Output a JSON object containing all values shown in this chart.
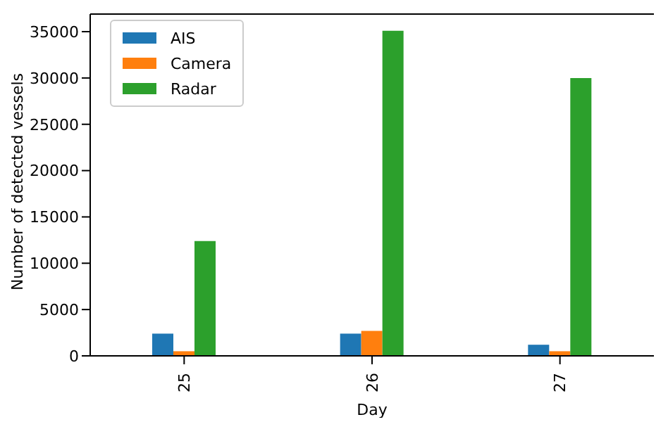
{
  "chart_data": {
    "type": "bar",
    "categories": [
      "25",
      "26",
      "27"
    ],
    "xlabel": "Day",
    "ylabel": "Number of detected vessels",
    "series": [
      {
        "name": "AIS",
        "color": "#1f77b4",
        "values": [
          2400,
          2400,
          1200
        ]
      },
      {
        "name": "Camera",
        "color": "#ff7f0e",
        "values": [
          500,
          2700,
          500
        ]
      },
      {
        "name": "Radar",
        "color": "#2ca02c",
        "values": [
          12400,
          35100,
          30000
        ]
      }
    ],
    "ylim": [
      0,
      36900
    ],
    "yticks": [
      0,
      5000,
      10000,
      15000,
      20000,
      25000,
      30000,
      35000
    ],
    "grid": false,
    "legend": "top left"
  }
}
